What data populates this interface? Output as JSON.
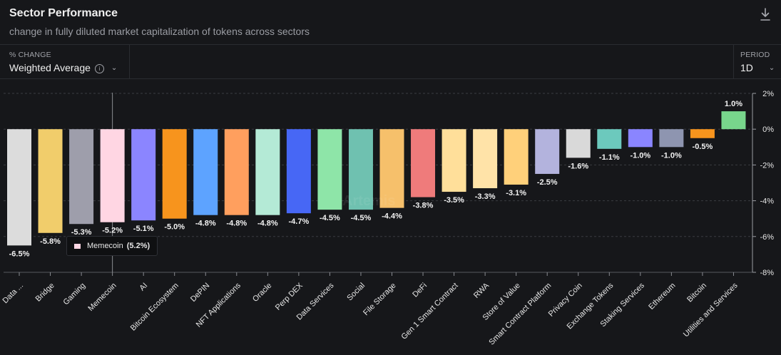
{
  "header": {
    "title": "Sector Performance",
    "subtitle": "change in fully diluted market capitalization of tokens across sectors"
  },
  "controls": {
    "change_label": "% CHANGE",
    "change_value": "Weighted Average",
    "period_label": "PERIOD",
    "period_value": "1D"
  },
  "tooltip": {
    "label": "Memecoin",
    "value": "(5.2%)"
  },
  "watermark": "Artemis",
  "chart_data": {
    "type": "bar",
    "categories": [
      "Data ...",
      "Bridge",
      "Gaming",
      "Memecoin",
      "AI",
      "Bitcoin Ecosystem",
      "DePIN",
      "NFT Applications",
      "Oracle",
      "Perp DEX",
      "Data Services",
      "Social",
      "File Storage",
      "DeFi",
      "Gen 1 Smart Contract",
      "RWA",
      "Store of Value",
      "Smart Contract Platform",
      "Privacy Coin",
      "Exchange Tokens",
      "Staking Services",
      "Ethereum",
      "Bitcoin",
      "Utilities and Services"
    ],
    "values": [
      -6.5,
      -5.8,
      -5.3,
      -5.2,
      -5.1,
      -5.0,
      -4.8,
      -4.8,
      -4.8,
      -4.7,
      -4.5,
      -4.5,
      -4.4,
      -3.8,
      -3.5,
      -3.3,
      -3.1,
      -2.5,
      -1.6,
      -1.1,
      -1.0,
      -1.0,
      -0.5,
      1.0
    ],
    "labels": [
      "-6.5%",
      "-5.8%",
      "-5.3%",
      "-5.2%",
      "-5.1%",
      "-5.0%",
      "-4.8%",
      "-4.8%",
      "-4.8%",
      "-4.7%",
      "-4.5%",
      "-4.5%",
      "-4.4%",
      "-3.8%",
      "-3.5%",
      "-3.3%",
      "-3.1%",
      "-2.5%",
      "-1.6%",
      "-1.1%",
      "-1.0%",
      "-1.0%",
      "-0.5%",
      "1.0%"
    ],
    "colors": [
      "#dcdcdc",
      "#f1cd6b",
      "#9e9eab",
      "#ffd6e3",
      "#8b85ff",
      "#f7941d",
      "#5da3ff",
      "#ff9f5e",
      "#b4ead6",
      "#4767f5",
      "#8ee5a8",
      "#6fc1b0",
      "#f6c06b",
      "#ef7b7b",
      "#ffdf9a",
      "#ffe3a8",
      "#ffd07a",
      "#b3b3dd",
      "#d9d9d9",
      "#6cc9bd",
      "#8a85ff",
      "#8e95b0",
      "#f7941d",
      "#78d68c"
    ],
    "yticks": [
      "2%",
      "0%",
      "-2%",
      "-4%",
      "-6%",
      "-8%"
    ],
    "ytick_values": [
      2,
      0,
      -2,
      -4,
      -6,
      -8
    ],
    "ylim": [
      -8,
      2
    ],
    "highlight": "Memecoin",
    "grid": true
  }
}
